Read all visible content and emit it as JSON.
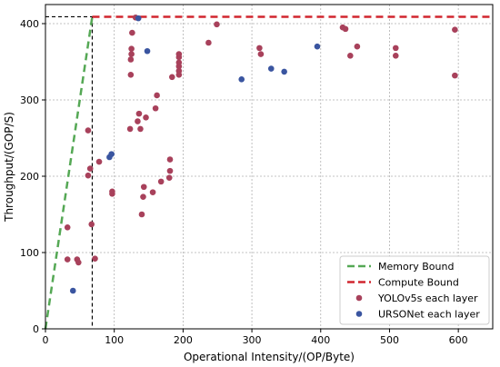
{
  "chart_data": {
    "type": "scatter",
    "xlabel": "Operational Intensity/(OP/Byte)",
    "ylabel": "Throughput/(GOP/S)",
    "xlim": [
      0,
      650
    ],
    "ylim": [
      0,
      425
    ],
    "xticks": [
      0,
      100,
      200,
      300,
      400,
      500,
      600
    ],
    "yticks": [
      0,
      100,
      200,
      300,
      400
    ],
    "grid": true,
    "legend_position": "lower-right",
    "colors": {
      "memory": "#55a855",
      "compute": "#d1262f",
      "yolo": "#a8415b",
      "urso": "#3a55a0"
    },
    "lines": [
      {
        "name": "Memory Bound",
        "style": "dashed",
        "points": [
          [
            0,
            0
          ],
          [
            68,
            409
          ]
        ]
      },
      {
        "name": "Compute Bound",
        "style": "dashed",
        "points": [
          [
            68,
            409
          ],
          [
            650,
            409
          ]
        ]
      }
    ],
    "ridge": {
      "x": 68,
      "y": 409
    },
    "series": [
      {
        "name": "YOLOv5s each layer",
        "points": [
          [
            32,
            133
          ],
          [
            32,
            91
          ],
          [
            46,
            91
          ],
          [
            48,
            87
          ],
          [
            62,
            260
          ],
          [
            62,
            201
          ],
          [
            65,
            210
          ],
          [
            67,
            137
          ],
          [
            72,
            92
          ],
          [
            78,
            219
          ],
          [
            97,
            177
          ],
          [
            97,
            180
          ],
          [
            123,
            262
          ],
          [
            124,
            333
          ],
          [
            124,
            353
          ],
          [
            125,
            360
          ],
          [
            125,
            367
          ],
          [
            126,
            388
          ],
          [
            131,
            408
          ],
          [
            134,
            272
          ],
          [
            136,
            282
          ],
          [
            138,
            262
          ],
          [
            140,
            150
          ],
          [
            142,
            173
          ],
          [
            143,
            186
          ],
          [
            146,
            277
          ],
          [
            156,
            179
          ],
          [
            160,
            289
          ],
          [
            162,
            306
          ],
          [
            168,
            193
          ],
          [
            180,
            198
          ],
          [
            181,
            207
          ],
          [
            181,
            222
          ],
          [
            184,
            330
          ],
          [
            194,
            333
          ],
          [
            194,
            338
          ],
          [
            194,
            344
          ],
          [
            194,
            349
          ],
          [
            194,
            356
          ],
          [
            194,
            360
          ],
          [
            237,
            375
          ],
          [
            249,
            399
          ],
          [
            311,
            368
          ],
          [
            313,
            360
          ],
          [
            432,
            395
          ],
          [
            436,
            393
          ],
          [
            443,
            358
          ],
          [
            453,
            370
          ],
          [
            509,
            368
          ],
          [
            509,
            358
          ],
          [
            595,
            392
          ],
          [
            595,
            332
          ]
        ]
      },
      {
        "name": "URSONet each layer",
        "points": [
          [
            40,
            50
          ],
          [
            93,
            225
          ],
          [
            96,
            229
          ],
          [
            135,
            407
          ],
          [
            148,
            364
          ],
          [
            285,
            327
          ],
          [
            328,
            341
          ],
          [
            347,
            337
          ],
          [
            395,
            370
          ]
        ]
      }
    ],
    "legend": [
      "Memory Bound",
      "Compute Bound",
      "YOLOv5s each layer",
      "URSONet each layer"
    ]
  }
}
